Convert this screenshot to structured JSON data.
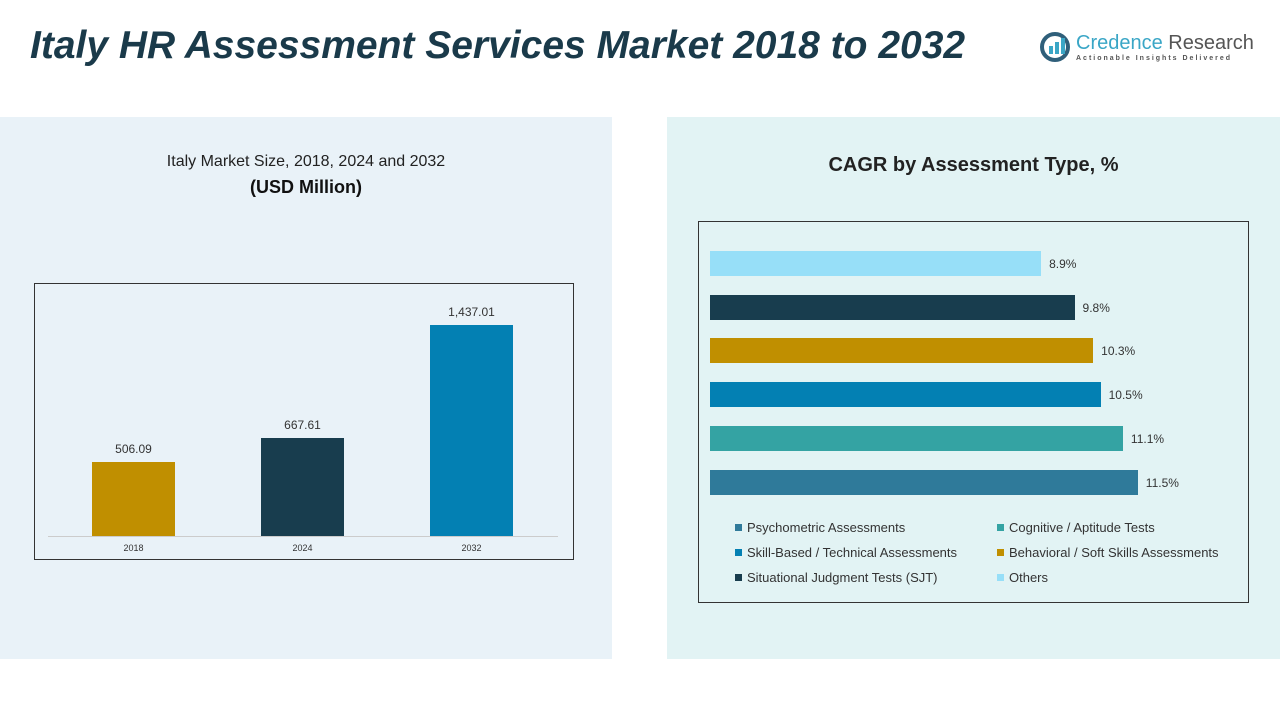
{
  "title": "Italy HR Assessment Services Market 2018 to 2032",
  "logo": {
    "name1": "Credence",
    "name2": "Research",
    "tagline": "Actionable Insights Delivered"
  },
  "chart_data": [
    {
      "type": "bar",
      "title": "Italy Market Size, 2018, 2024 and 2032",
      "subtitle": "(USD Million)",
      "categories": [
        "2018",
        "2024",
        "2032"
      ],
      "values": [
        506.09,
        667.61,
        1437.01
      ],
      "labels": [
        "506.09",
        "667.61",
        "1,437.01"
      ],
      "colors": [
        "#c08f00",
        "#183d4e",
        "#0380b3"
      ],
      "ylim": [
        0,
        1437.01
      ]
    },
    {
      "type": "bar",
      "orientation": "horizontal",
      "title": "CAGR by Assessment Type, %",
      "categories": [
        "Others",
        "Situational Judgment Tests (SJT)",
        "Behavioral / Soft Skills Assessments",
        "Skill-Based / Technical Assessments",
        "Cognitive / Aptitude Tests",
        "Psychometric Assessments"
      ],
      "values": [
        8.9,
        9.8,
        10.3,
        10.5,
        11.1,
        11.5
      ],
      "labels": [
        "8.9%",
        "9.8%",
        "10.3%",
        "10.5%",
        "11.1%",
        "11.5%"
      ],
      "colors": [
        "#97dff8",
        "#183d4e",
        "#c08f00",
        "#0380b3",
        "#34a3a3",
        "#2f7a9a"
      ],
      "legend": [
        {
          "label": "Psychometric Assessments",
          "color": "#2f7a9a"
        },
        {
          "label": "Cognitive / Aptitude Tests",
          "color": "#34a3a3"
        },
        {
          "label": "Skill-Based / Technical Assessments",
          "color": "#0380b3"
        },
        {
          "label": "Behavioral / Soft Skills Assessments",
          "color": "#c08f00"
        },
        {
          "label": "Situational Judgment Tests (SJT)",
          "color": "#183d4e"
        },
        {
          "label": "Others",
          "color": "#97dff8"
        }
      ],
      "legend_position": "bottom"
    }
  ]
}
